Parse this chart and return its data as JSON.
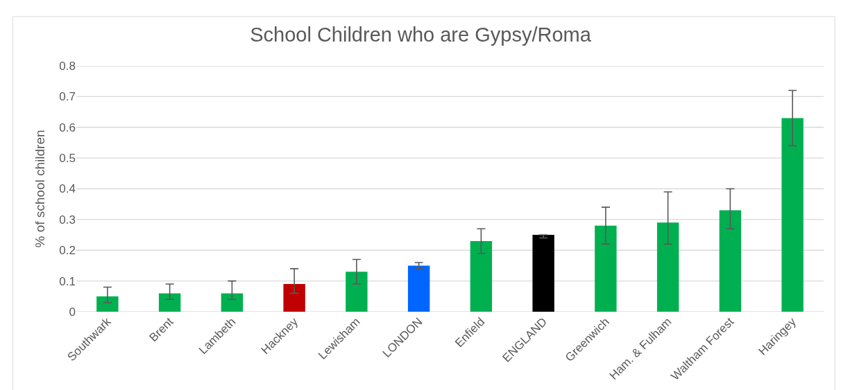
{
  "chart_data": {
    "type": "bar",
    "title": "School Children who are Gypsy/Roma",
    "ylabel": "% of school children",
    "categories": [
      "Southwark",
      "Brent",
      "Lambeth",
      "Hackney",
      "Lewisham",
      "LONDON",
      "Enfield",
      "ENGLAND",
      "Greenwich",
      "Ham. & Fulham",
      "Waltham Forest",
      "Haringey"
    ],
    "values": [
      0.05,
      0.06,
      0.06,
      0.09,
      0.13,
      0.15,
      0.23,
      0.25,
      0.28,
      0.29,
      0.33,
      0.63
    ],
    "colors": [
      "#00b050",
      "#00b050",
      "#00b050",
      "#c00000",
      "#00b050",
      "#0066ff",
      "#00b050",
      "#000000",
      "#00b050",
      "#00b050",
      "#00b050",
      "#00b050"
    ],
    "errors": [
      [
        0.03,
        0.08
      ],
      [
        0.04,
        0.09
      ],
      [
        0.04,
        0.1
      ],
      [
        0.06,
        0.14
      ],
      [
        0.09,
        0.17
      ],
      [
        0.14,
        0.16
      ],
      [
        0.19,
        0.27
      ],
      [
        0.24,
        0.25
      ],
      [
        0.22,
        0.34
      ],
      [
        0.22,
        0.39
      ],
      [
        0.27,
        0.4
      ],
      [
        0.54,
        0.72
      ]
    ],
    "ylim": [
      0,
      0.8
    ],
    "yticks": [
      0,
      0.1,
      0.2,
      0.3,
      0.4,
      0.5,
      0.6,
      0.7,
      0.8
    ],
    "grid": "y"
  }
}
